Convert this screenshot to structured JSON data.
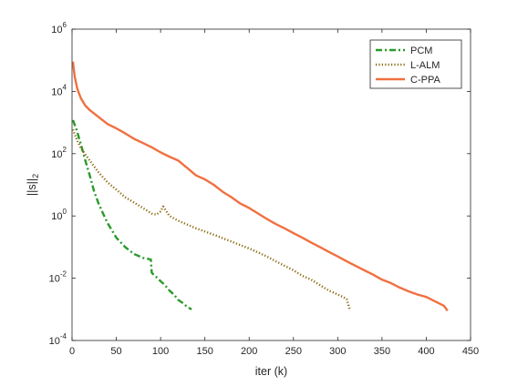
{
  "chart_data": {
    "type": "line",
    "title": "",
    "xlabel": "iter (k)",
    "ylabel": {
      "base": "||s||",
      "sub": "2"
    },
    "xlim": [
      0,
      450
    ],
    "ylim": [
      0.0001,
      1000000
    ],
    "yscale": "log",
    "grid": false,
    "legend_position": "top-right",
    "xticks": [
      {
        "value": 0,
        "label": "0"
      },
      {
        "value": 50,
        "label": "50"
      },
      {
        "value": 100,
        "label": "100"
      },
      {
        "value": 150,
        "label": "150"
      },
      {
        "value": 200,
        "label": "200"
      },
      {
        "value": 250,
        "label": "250"
      },
      {
        "value": 300,
        "label": "300"
      },
      {
        "value": 350,
        "label": "350"
      },
      {
        "value": 400,
        "label": "400"
      },
      {
        "value": 450,
        "label": "450"
      }
    ],
    "yticks": [
      {
        "value": 0.0001,
        "base": "10",
        "exp": "-4"
      },
      {
        "value": 0.01,
        "base": "10",
        "exp": "-2"
      },
      {
        "value": 1,
        "base": "10",
        "exp": "0"
      },
      {
        "value": 100,
        "base": "10",
        "exp": "2"
      },
      {
        "value": 10000,
        "base": "10",
        "exp": "4"
      },
      {
        "value": 1000000,
        "base": "10",
        "exp": "6"
      }
    ],
    "series": [
      {
        "name": "PCM",
        "color": "#2a9a2a",
        "style": "dashdot",
        "x": [
          1,
          5,
          10,
          15,
          20,
          25,
          30,
          35,
          40,
          50,
          60,
          70,
          80,
          89,
          90,
          95,
          100,
          105,
          110,
          115,
          120,
          125,
          130,
          135
        ],
        "y": [
          1200,
          600,
          200,
          60,
          20,
          6,
          2.5,
          1.2,
          0.6,
          0.2,
          0.1,
          0.06,
          0.045,
          0.04,
          0.015,
          0.011,
          0.008,
          0.006,
          0.004,
          0.003,
          0.002,
          0.0016,
          0.0012,
          0.001
        ]
      },
      {
        "name": "L-ALM",
        "color": "#8b6a10",
        "style": "dotted",
        "x": [
          1,
          5,
          10,
          20,
          30,
          40,
          50,
          60,
          70,
          80,
          90,
          95,
          100,
          103,
          110,
          120,
          140,
          160,
          180,
          200,
          220,
          230,
          240,
          250,
          260,
          270,
          280,
          290,
          300,
          310,
          314
        ],
        "y": [
          600,
          300,
          150,
          60,
          25,
          12,
          7,
          4,
          2.7,
          1.8,
          1.2,
          1.1,
          1.4,
          2.0,
          1.0,
          0.7,
          0.4,
          0.25,
          0.15,
          0.09,
          0.05,
          0.035,
          0.025,
          0.018,
          0.012,
          0.009,
          0.006,
          0.004,
          0.003,
          0.0022,
          0.0009
        ]
      },
      {
        "name": "C-PPA",
        "color": "#f07040",
        "style": "solid",
        "x": [
          1,
          3,
          6,
          10,
          15,
          20,
          30,
          40,
          50,
          60,
          70,
          80,
          90,
          100,
          110,
          120,
          130,
          140,
          150,
          160,
          170,
          180,
          190,
          200,
          210,
          220,
          230,
          240,
          250,
          260,
          270,
          280,
          290,
          300,
          310,
          320,
          330,
          340,
          350,
          360,
          370,
          380,
          390,
          400,
          410,
          420,
          424
        ],
        "y": [
          90000,
          30000,
          12000,
          6000,
          3500,
          2500,
          1500,
          900,
          650,
          450,
          300,
          220,
          160,
          110,
          80,
          60,
          35,
          20,
          15,
          10,
          6,
          4,
          2.5,
          1.8,
          1.2,
          0.8,
          0.55,
          0.4,
          0.28,
          0.2,
          0.14,
          0.1,
          0.07,
          0.05,
          0.035,
          0.025,
          0.018,
          0.013,
          0.009,
          0.007,
          0.005,
          0.0038,
          0.003,
          0.0025,
          0.0018,
          0.0013,
          0.0009
        ]
      }
    ]
  }
}
